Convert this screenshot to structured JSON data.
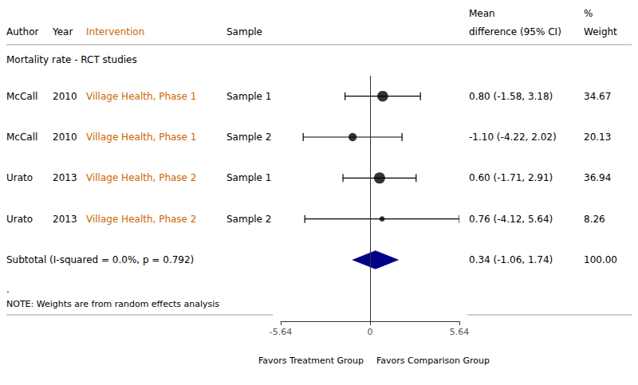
{
  "chart_data": {
    "type": "forest",
    "header_row1": [
      "Mean",
      "%"
    ],
    "columns": [
      "Author",
      "Year",
      "Intervention",
      "Sample",
      "difference (95% CI)",
      "Weight"
    ],
    "section_label": "Mortality rate - RCT studies",
    "studies": [
      {
        "author": "McCall",
        "year": "2010",
        "intervention": "Village Health, Phase 1",
        "sample": "Sample 1",
        "mean": 0.8,
        "ci_lo": -1.58,
        "ci_hi": 3.18,
        "weight": 34.67,
        "weight_label": "34.67",
        "ci_label": "0.80 (-1.58, 3.18)"
      },
      {
        "author": "McCall",
        "year": "2010",
        "intervention": "Village Health, Phase 1",
        "sample": "Sample 2",
        "mean": -1.1,
        "ci_lo": -4.22,
        "ci_hi": 2.02,
        "weight": 20.13,
        "weight_label": "20.13",
        "ci_label": "-1.10 (-4.22, 2.02)"
      },
      {
        "author": "Urato",
        "year": "2013",
        "intervention": "Village Health, Phase 2",
        "sample": "Sample 1",
        "mean": 0.6,
        "ci_lo": -1.71,
        "ci_hi": 2.91,
        "weight": 36.94,
        "weight_label": "36.94",
        "ci_label": "0.60 (-1.71, 2.91)"
      },
      {
        "author": "Urato",
        "year": "2013",
        "intervention": "Village Health, Phase 2",
        "sample": "Sample 2",
        "mean": 0.76,
        "ci_lo": -4.12,
        "ci_hi": 5.64,
        "weight": 8.26,
        "weight_label": "8.26",
        "ci_label": "0.76 (-4.12, 5.64)"
      }
    ],
    "subtotal": {
      "label": "Subtotal (I-squared = 0.0%, p = 0.792)",
      "mean": 0.34,
      "ci_lo": -1.06,
      "ci_hi": 1.74,
      "weight": 100.0,
      "weight_label": "100.00",
      "ci_label": "0.34 (-1.06, 1.74)"
    },
    "dot_row": ".",
    "note": "NOTE: Weights are from random effects analysis",
    "xlim": [
      -5.64,
      5.64
    ],
    "xticks": [
      -5.64,
      0,
      5.64
    ],
    "vline_x": 0,
    "xlabel_left": "Favors Treatment Group",
    "xlabel_right": "Favors Comparison Group",
    "ci_color": "#000000",
    "diamond_color": "#00008B",
    "intervention_color": "#cc6600",
    "grid": false
  }
}
